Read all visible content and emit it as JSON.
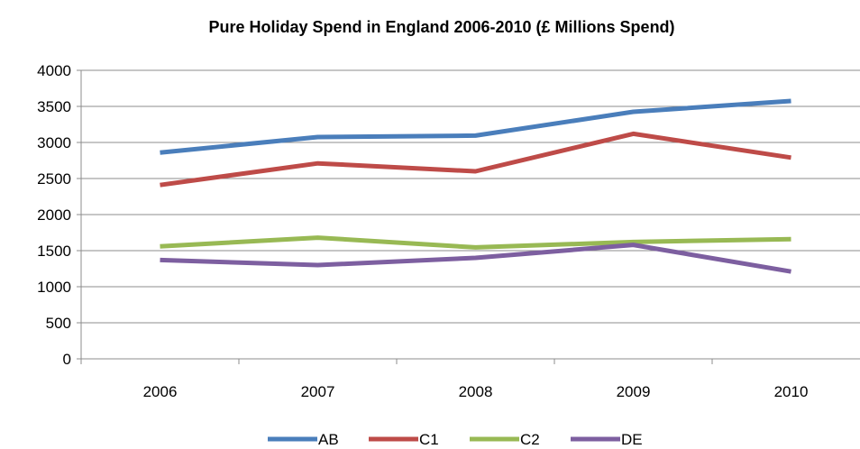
{
  "chart_data": {
    "type": "line",
    "title": "Pure Holiday Spend in England 2006-2010 (£ Millions Spend)",
    "xlabel": "",
    "ylabel": "",
    "categories": [
      "2006",
      "2007",
      "2008",
      "2009",
      "2010"
    ],
    "ylim": [
      0,
      4000
    ],
    "yticks": [
      0,
      500,
      1000,
      1500,
      2000,
      2500,
      3000,
      3500,
      4000
    ],
    "grid": true,
    "legend": "bottom",
    "series": [
      {
        "name": "AB",
        "color": "#4a7ebb",
        "values": [
          2860,
          3075,
          3095,
          3425,
          3575
        ]
      },
      {
        "name": "C1",
        "color": "#be4b48",
        "values": [
          2410,
          2710,
          2600,
          3120,
          2790
        ]
      },
      {
        "name": "C2",
        "color": "#98b954",
        "values": [
          1560,
          1680,
          1545,
          1620,
          1660
        ]
      },
      {
        "name": "DE",
        "color": "#7d5fa0",
        "values": [
          1370,
          1300,
          1400,
          1580,
          1210
        ]
      }
    ]
  }
}
